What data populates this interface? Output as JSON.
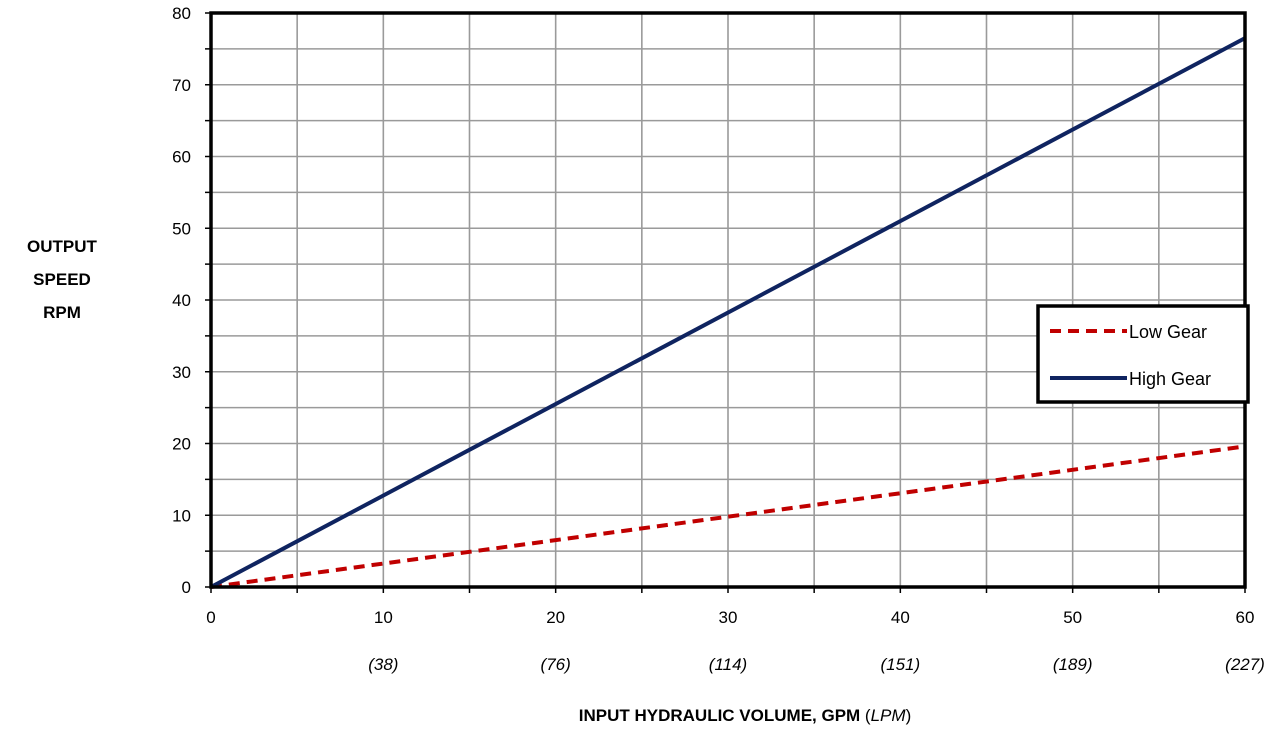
{
  "chart_data": {
    "type": "line",
    "ylabel_lines": [
      "OUTPUT",
      "SPEED",
      "RPM"
    ],
    "xlabel_bold": "INPUT HYDRAULIC VOLUME, GPM",
    "xlabel_open": " (",
    "xlabel_italic": "LPM",
    "xlabel_close": ")",
    "xlim": [
      0,
      60
    ],
    "ylim": [
      0,
      80
    ],
    "x_ticks": [
      0,
      10,
      20,
      30,
      40,
      50,
      60
    ],
    "y_ticks": [
      0,
      10,
      20,
      30,
      40,
      50,
      60,
      70,
      80
    ],
    "x_minor_step": 5,
    "y_minor_step": 5,
    "x_secondary_labels": [
      {
        "x": 10,
        "label": "(38)"
      },
      {
        "x": 20,
        "label": "(76)"
      },
      {
        "x": 30,
        "label": "(114)"
      },
      {
        "x": 40,
        "label": "(151)"
      },
      {
        "x": 50,
        "label": "(189)"
      },
      {
        "x": 60,
        "label": "(227)"
      }
    ],
    "grid": true,
    "legend_position": "right",
    "series": [
      {
        "name": "Low Gear",
        "color": "#C00000",
        "style": "dashed",
        "x": [
          0,
          60
        ],
        "y": [
          0,
          19.6
        ]
      },
      {
        "name": "High Gear",
        "color": "#0F2460",
        "style": "solid",
        "x": [
          0,
          60
        ],
        "y": [
          0,
          76.5
        ]
      }
    ]
  }
}
